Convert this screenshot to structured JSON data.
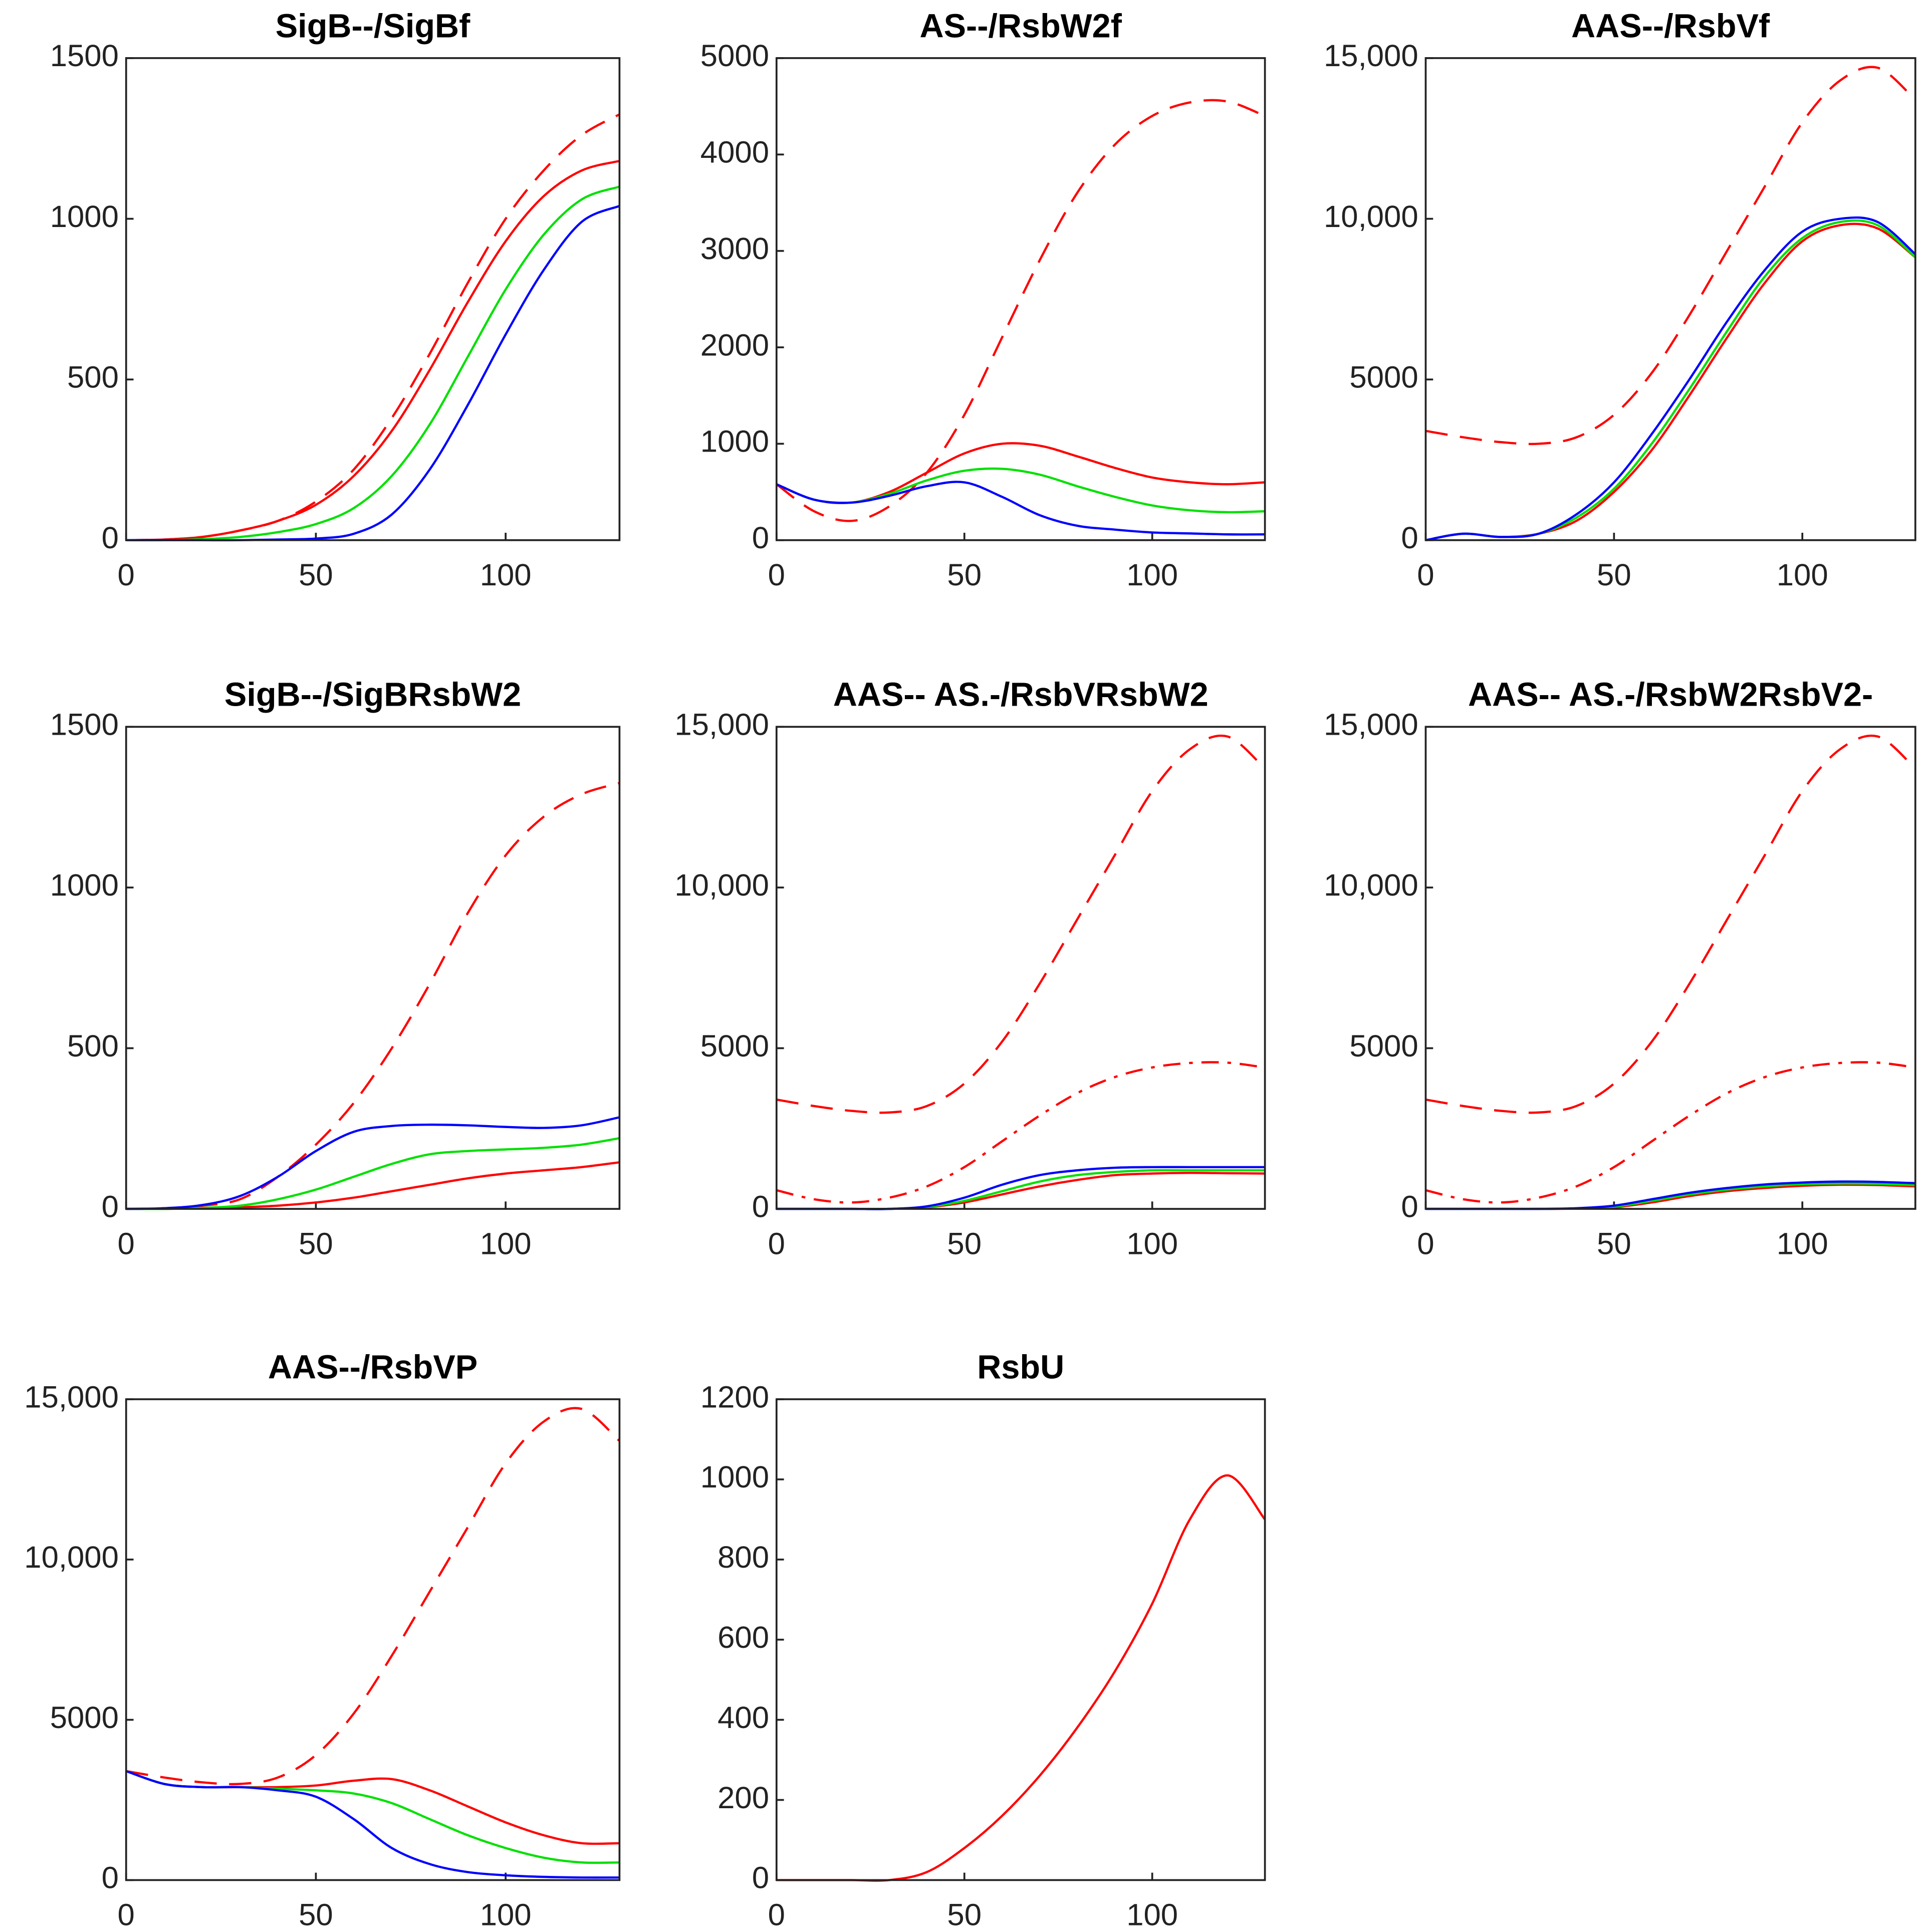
{
  "chart_data": [
    {
      "type": "line",
      "title": "SigB--/SigBf",
      "x": [
        0,
        10,
        20,
        30,
        40,
        50,
        60,
        70,
        80,
        90,
        100,
        110,
        120,
        130
      ],
      "xlim": [
        0,
        130
      ],
      "xticks": [
        0,
        50,
        100
      ],
      "ylim": [
        0,
        1500
      ],
      "yticks": [
        0,
        500,
        1000,
        1500
      ],
      "series": [
        {
          "color": "#ff0000",
          "dash": "dashed",
          "values": [
            0,
            2,
            10,
            30,
            60,
            120,
            220,
            380,
            580,
            800,
            1000,
            1150,
            1260,
            1325
          ]
        },
        {
          "color": "#ff0000",
          "values": [
            0,
            2,
            10,
            30,
            60,
            110,
            200,
            340,
            530,
            740,
            930,
            1070,
            1150,
            1180
          ]
        },
        {
          "color": "#00e000",
          "values": [
            0,
            0,
            3,
            10,
            25,
            50,
            100,
            200,
            360,
            570,
            780,
            950,
            1060,
            1100
          ]
        },
        {
          "color": "#0000ff",
          "values": [
            0,
            0,
            0,
            0,
            2,
            5,
            20,
            80,
            220,
            420,
            640,
            840,
            990,
            1040
          ]
        }
      ]
    },
    {
      "type": "line",
      "title": "AS--/RsbW2f",
      "x": [
        0,
        10,
        20,
        30,
        40,
        50,
        60,
        70,
        80,
        90,
        100,
        110,
        120,
        130
      ],
      "xlim": [
        0,
        130
      ],
      "xticks": [
        0,
        50,
        100
      ],
      "ylim": [
        0,
        5000
      ],
      "yticks": [
        0,
        1000,
        2000,
        3000,
        4000,
        5000
      ],
      "series": [
        {
          "color": "#ff0000",
          "dash": "dashed",
          "values": [
            580,
            300,
            200,
            350,
            700,
            1300,
            2100,
            2900,
            3600,
            4100,
            4400,
            4540,
            4550,
            4400
          ]
        },
        {
          "color": "#ff0000",
          "values": [
            580,
            420,
            390,
            500,
            700,
            900,
            1000,
            980,
            870,
            750,
            650,
            600,
            580,
            600
          ]
        },
        {
          "color": "#00e000",
          "values": [
            580,
            420,
            390,
            480,
            620,
            720,
            740,
            680,
            560,
            450,
            360,
            310,
            290,
            300
          ]
        },
        {
          "color": "#0000ff",
          "values": [
            580,
            420,
            390,
            460,
            560,
            600,
            450,
            260,
            150,
            110,
            80,
            70,
            60,
            60
          ]
        }
      ]
    },
    {
      "type": "line",
      "title": "AAS--/RsbVf",
      "x": [
        0,
        10,
        20,
        30,
        40,
        50,
        60,
        70,
        80,
        90,
        100,
        110,
        120,
        130
      ],
      "xlim": [
        0,
        130
      ],
      "xticks": [
        0,
        50,
        100
      ],
      "ylim": [
        0,
        15000
      ],
      "yticks": [
        0,
        5000,
        {
          "value": 10000,
          "label": "10,000"
        },
        {
          "value": 15000,
          "label": "15,000"
        }
      ],
      "series": [
        {
          "color": "#ff0000",
          "dash": "dashed",
          "values": [
            3400,
            3200,
            3050,
            3000,
            3200,
            3900,
            5200,
            7000,
            9000,
            11000,
            13000,
            14300,
            14700,
            13700
          ]
        },
        {
          "color": "#ff0000",
          "values": [
            0,
            200,
            100,
            200,
            600,
            1500,
            2800,
            4500,
            6300,
            8000,
            9300,
            9800,
            9700,
            8800
          ]
        },
        {
          "color": "#00e000",
          "values": [
            0,
            200,
            100,
            200,
            700,
            1600,
            3000,
            4700,
            6500,
            8200,
            9400,
            9900,
            9800,
            8800
          ]
        },
        {
          "color": "#0000ff",
          "values": [
            0,
            200,
            100,
            200,
            800,
            1800,
            3300,
            5000,
            6800,
            8400,
            9600,
            10000,
            9900,
            8900
          ]
        }
      ]
    },
    {
      "type": "line",
      "title": "SigB--/SigBRsbW2",
      "x": [
        0,
        10,
        20,
        30,
        40,
        50,
        60,
        70,
        80,
        90,
        100,
        110,
        120,
        130
      ],
      "xlim": [
        0,
        130
      ],
      "xticks": [
        0,
        50,
        100
      ],
      "ylim": [
        0,
        1500
      ],
      "yticks": [
        0,
        500,
        1000,
        1500
      ],
      "series": [
        {
          "color": "#ff0000",
          "dash": "dashed",
          "values": [
            0,
            2,
            10,
            30,
            100,
            200,
            330,
            500,
            700,
            920,
            1100,
            1220,
            1290,
            1325
          ]
        },
        {
          "color": "#ff0000",
          "values": [
            0,
            0,
            2,
            5,
            10,
            20,
            35,
            55,
            75,
            95,
            110,
            120,
            130,
            145
          ]
        },
        {
          "color": "#00e000",
          "values": [
            0,
            0,
            3,
            10,
            30,
            60,
            100,
            140,
            170,
            180,
            185,
            190,
            200,
            220
          ]
        },
        {
          "color": "#0000ff",
          "values": [
            0,
            2,
            12,
            40,
            100,
            180,
            240,
            258,
            262,
            260,
            255,
            252,
            260,
            285
          ]
        }
      ]
    },
    {
      "type": "line",
      "title": "AAS-- AS.-/RsbVRsbW2",
      "x": [
        0,
        10,
        20,
        30,
        40,
        50,
        60,
        70,
        80,
        90,
        100,
        110,
        120,
        130
      ],
      "xlim": [
        0,
        130
      ],
      "xticks": [
        0,
        50,
        100
      ],
      "ylim": [
        0,
        15000
      ],
      "yticks": [
        0,
        5000,
        {
          "value": 10000,
          "label": "10,000"
        },
        {
          "value": 15000,
          "label": "15,000"
        }
      ],
      "series": [
        {
          "color": "#ff0000",
          "dash": "dashed",
          "values": [
            3400,
            3200,
            3050,
            3000,
            3200,
            3900,
            5200,
            7000,
            9000,
            11000,
            13000,
            14300,
            14700,
            13700
          ]
        },
        {
          "color": "#ff0000",
          "dash": "dashdot",
          "values": [
            580,
            300,
            200,
            350,
            700,
            1300,
            2100,
            2900,
            3600,
            4100,
            4400,
            4540,
            4550,
            4400
          ]
        },
        {
          "color": "#ff0000",
          "values": [
            0,
            0,
            0,
            0,
            50,
            200,
            450,
            700,
            900,
            1050,
            1100,
            1120,
            1110,
            1100
          ]
        },
        {
          "color": "#00e000",
          "values": [
            0,
            0,
            0,
            0,
            60,
            250,
            550,
            850,
            1050,
            1150,
            1200,
            1200,
            1200,
            1200
          ]
        },
        {
          "color": "#0000ff",
          "values": [
            0,
            0,
            0,
            0,
            80,
            350,
            750,
            1050,
            1200,
            1280,
            1300,
            1300,
            1300,
            1300
          ]
        }
      ]
    },
    {
      "type": "line",
      "title": "AAS-- AS.-/RsbW2RsbV2-",
      "x": [
        0,
        10,
        20,
        30,
        40,
        50,
        60,
        70,
        80,
        90,
        100,
        110,
        120,
        130
      ],
      "xlim": [
        0,
        130
      ],
      "xticks": [
        0,
        50,
        100
      ],
      "ylim": [
        0,
        15000
      ],
      "yticks": [
        0,
        5000,
        {
          "value": 10000,
          "label": "10,000"
        },
        {
          "value": 15000,
          "label": "15,000"
        }
      ],
      "series": [
        {
          "color": "#ff0000",
          "dash": "dashed",
          "values": [
            3400,
            3200,
            3050,
            3000,
            3200,
            3900,
            5200,
            7000,
            9000,
            11000,
            13000,
            14300,
            14700,
            13700
          ]
        },
        {
          "color": "#ff0000",
          "dash": "dashdot",
          "values": [
            580,
            300,
            200,
            350,
            700,
            1300,
            2100,
            2900,
            3600,
            4100,
            4400,
            4540,
            4550,
            4400
          ]
        },
        {
          "color": "#ff0000",
          "values": [
            0,
            0,
            0,
            0,
            10,
            50,
            200,
            400,
            550,
            650,
            720,
            750,
            740,
            700
          ]
        },
        {
          "color": "#00e000",
          "values": [
            0,
            0,
            0,
            0,
            15,
            70,
            250,
            450,
            600,
            700,
            770,
            790,
            780,
            740
          ]
        },
        {
          "color": "#0000ff",
          "values": [
            0,
            0,
            0,
            0,
            20,
            100,
            300,
            500,
            650,
            760,
            820,
            850,
            840,
            800
          ]
        }
      ]
    },
    {
      "type": "line",
      "title": "AAS--/RsbVP",
      "x": [
        0,
        10,
        20,
        30,
        40,
        50,
        60,
        70,
        80,
        90,
        100,
        110,
        120,
        130
      ],
      "xlim": [
        0,
        130
      ],
      "xticks": [
        0,
        50,
        100
      ],
      "ylim": [
        0,
        15000
      ],
      "yticks": [
        0,
        5000,
        {
          "value": 10000,
          "label": "10,000"
        },
        {
          "value": 15000,
          "label": "15,000"
        }
      ],
      "series": [
        {
          "color": "#ff0000",
          "dash": "dashed",
          "values": [
            3400,
            3200,
            3050,
            3000,
            3200,
            3900,
            5200,
            7000,
            9000,
            11000,
            13000,
            14300,
            14700,
            13700
          ]
        },
        {
          "color": "#ff0000",
          "values": [
            3400,
            3000,
            2900,
            2900,
            2900,
            2950,
            3100,
            3150,
            2800,
            2300,
            1800,
            1400,
            1150,
            1150
          ]
        },
        {
          "color": "#00e000",
          "values": [
            3400,
            3000,
            2900,
            2900,
            2850,
            2800,
            2700,
            2400,
            1900,
            1400,
            1000,
            700,
            550,
            550
          ]
        },
        {
          "color": "#0000ff",
          "values": [
            3400,
            3000,
            2900,
            2900,
            2800,
            2600,
            1900,
            1000,
            500,
            250,
            150,
            100,
            80,
            80
          ]
        }
      ]
    },
    {
      "type": "line",
      "title": "RsbU",
      "x": [
        0,
        10,
        20,
        30,
        40,
        50,
        60,
        70,
        80,
        90,
        100,
        110,
        120,
        130
      ],
      "xlim": [
        0,
        130
      ],
      "xticks": [
        0,
        50,
        100
      ],
      "ylim": [
        0,
        1200
      ],
      "yticks": [
        0,
        200,
        400,
        600,
        800,
        1000,
        1200
      ],
      "series": [
        {
          "color": "#ff0000",
          "values": [
            0,
            0,
            0,
            0,
            20,
            80,
            160,
            260,
            380,
            520,
            690,
            900,
            1010,
            900
          ]
        }
      ]
    }
  ]
}
